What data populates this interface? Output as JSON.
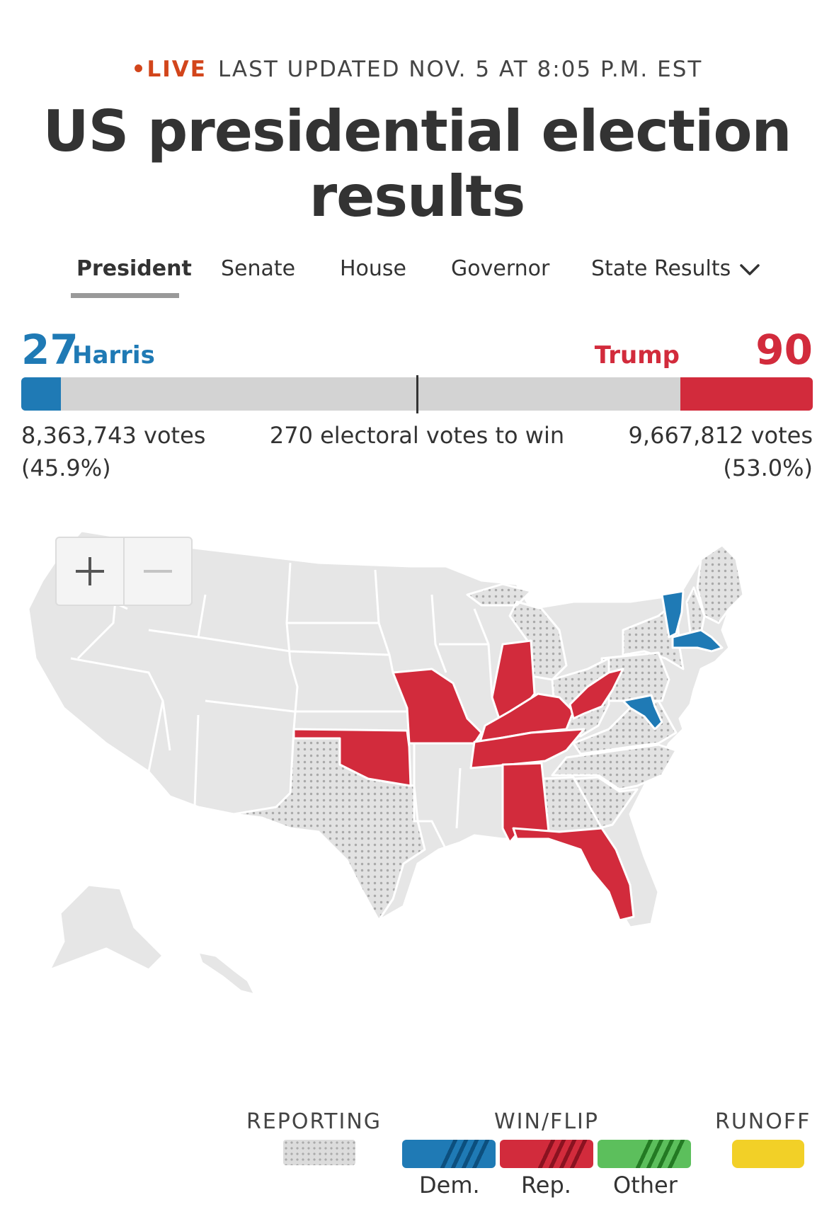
{
  "header": {
    "live_dot": "•",
    "live_label": "LIVE",
    "updated": "LAST UPDATED NOV. 5 AT 8:05 P.M. EST",
    "title": "US presidential election results"
  },
  "tabs": [
    {
      "label": "President",
      "active": true
    },
    {
      "label": "Senate"
    },
    {
      "label": "House"
    },
    {
      "label": "Governor"
    },
    {
      "label": "State Results"
    }
  ],
  "tab_dropdown_icon": "chevron-down-icon",
  "score": {
    "dem": {
      "name": "Harris",
      "electoral_votes": "27",
      "votes": "8,363,743 votes",
      "pct": "(45.9%)",
      "color": "#1f7ab5",
      "share": 0.05
    },
    "rep": {
      "name": "Trump",
      "electoral_votes": "90",
      "votes": "9,667,812 votes",
      "pct": "(53.0%)",
      "color": "#d22b3c",
      "share": 0.167
    },
    "to_win": "270 electoral votes to win",
    "bar_background": "#d3d3d3"
  },
  "map": {
    "zoom_in_icon": "plus-icon",
    "zoom_out_icon": "minus-icon",
    "colors": {
      "dem": "#1f7ab5",
      "rep": "#d22b3c",
      "reporting": "#dcdcdc",
      "no_results": "#e6e6e6"
    },
    "states_dem": [
      "VT",
      "MA",
      "MD"
    ],
    "states_rep": [
      "IN",
      "KY",
      "WV",
      "MO",
      "OK",
      "TN",
      "AL",
      "FL"
    ],
    "states_reporting": [
      "ME",
      "NH",
      "NY",
      "PA",
      "OH",
      "MI",
      "VA",
      "NC",
      "SC",
      "GA",
      "TX"
    ]
  },
  "legend": {
    "reporting": "REPORTING",
    "win_flip": "WIN/FLIP",
    "runoff": "RUNOFF",
    "dem": "Dem.",
    "rep": "Rep.",
    "other": "Other",
    "colors": {
      "dem": "#1f7ab5",
      "rep": "#d22b3c",
      "other": "#5cbf5c",
      "runoff": "#f2d027"
    }
  }
}
